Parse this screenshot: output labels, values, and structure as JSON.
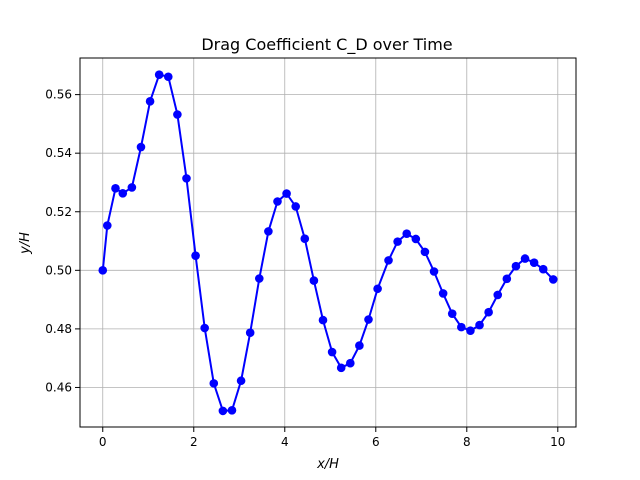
{
  "chart_data": {
    "type": "line",
    "title": "Drag Coefficient C_D over Time",
    "xlabel": "x/H",
    "ylabel": "y/H",
    "xlim": [
      -0.5,
      10.4
    ],
    "ylim": [
      0.4465,
      0.5725
    ],
    "xticks": [
      0,
      2,
      4,
      6,
      8,
      10
    ],
    "xtick_labels": [
      "0",
      "2",
      "4",
      "6",
      "8",
      "10"
    ],
    "yticks": [
      0.46,
      0.48,
      0.5,
      0.52,
      0.54,
      0.56
    ],
    "ytick_labels": [
      "0.46",
      "0.48",
      "0.50",
      "0.52",
      "0.54",
      "0.56"
    ],
    "grid": true,
    "color": "#0000ff",
    "marker": "circle",
    "series": [
      {
        "x": [
          0.0,
          0.1,
          0.28,
          0.44,
          0.64,
          0.84,
          1.04,
          1.24,
          1.44,
          1.64,
          1.84,
          2.04,
          2.24,
          2.44,
          2.64,
          2.84,
          3.04,
          3.24,
          3.44,
          3.64,
          3.84,
          4.04,
          4.24,
          4.44,
          4.64,
          4.84,
          5.04,
          5.24,
          5.44,
          5.64,
          5.84,
          6.04,
          6.28,
          6.48,
          6.68,
          6.88,
          7.08,
          7.28,
          7.48,
          7.68,
          7.88,
          8.08,
          8.28,
          8.48,
          8.68,
          8.88,
          9.08,
          9.28,
          9.48,
          9.68,
          9.9
        ],
        "y": [
          0.5,
          0.5153,
          0.528,
          0.5263,
          0.5283,
          0.5421,
          0.5577,
          0.5668,
          0.5661,
          0.5532,
          0.5314,
          0.505,
          0.4803,
          0.4614,
          0.452,
          0.4522,
          0.4623,
          0.4787,
          0.4972,
          0.5133,
          0.5235,
          0.5262,
          0.5218,
          0.5108,
          0.4965,
          0.483,
          0.4721,
          0.4667,
          0.4683,
          0.4743,
          0.4832,
          0.4937,
          0.5034,
          0.5098,
          0.5125,
          0.5107,
          0.5063,
          0.4996,
          0.4921,
          0.4852,
          0.4806,
          0.4794,
          0.4813,
          0.4857,
          0.4916,
          0.4971,
          0.5014,
          0.504,
          0.5026,
          0.5004,
          0.4969
        ]
      }
    ]
  }
}
